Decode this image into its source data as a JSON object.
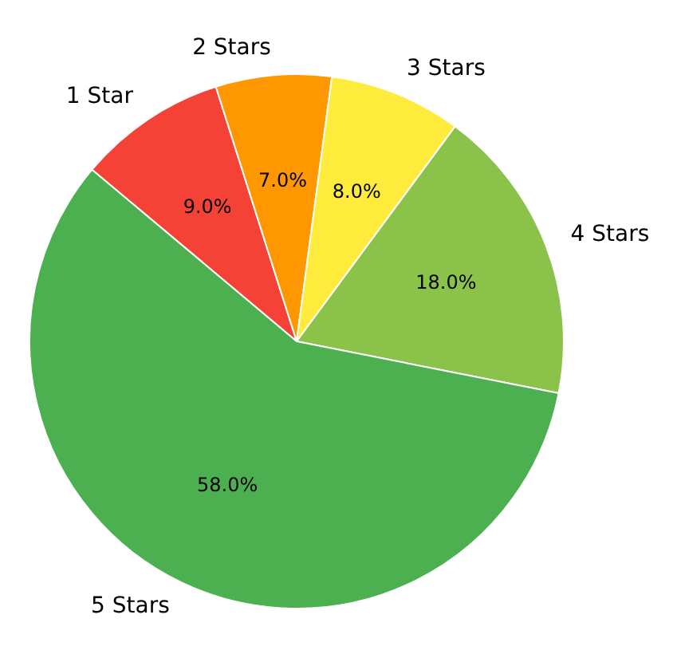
{
  "chart_data": {
    "type": "pie",
    "categories": [
      "1 Star",
      "2 Stars",
      "3 Stars",
      "4 Stars",
      "5 Stars"
    ],
    "values": [
      9,
      7,
      8,
      18,
      58
    ],
    "colors": [
      "#f44336",
      "#ff9800",
      "#ffeb3b",
      "#8bc34a",
      "#4caf50"
    ],
    "value_labels": [
      "9.0%",
      "7.0%",
      "8.0%",
      "18.0%",
      "58.0%"
    ]
  }
}
